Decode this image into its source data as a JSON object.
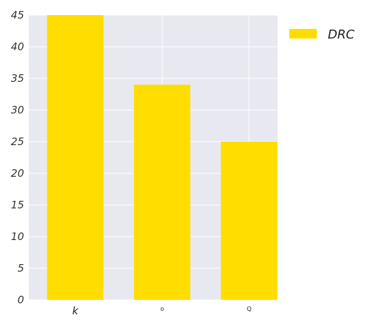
{
  "chart_data": {
    "type": "bar",
    "categories": [
      "k",
      "o",
      "Q"
    ],
    "series": [
      {
        "name": "DRC",
        "values": [
          45,
          34,
          25
        ],
        "color": "#FFDD00"
      }
    ],
    "ylim": [
      0,
      45
    ],
    "yticks": [
      "0",
      "5",
      "10",
      "15",
      "20",
      "25",
      "30",
      "35",
      "40",
      "45"
    ],
    "grid": true,
    "background": "#E8E8F0",
    "legend_position": "top-right"
  }
}
